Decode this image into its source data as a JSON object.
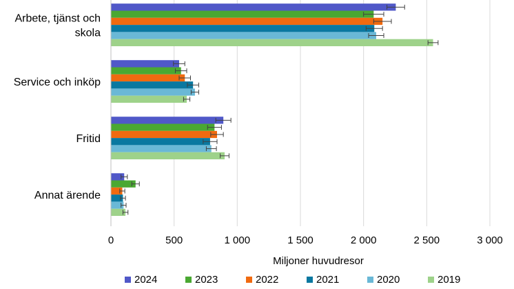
{
  "chart_data": {
    "type": "bar",
    "orientation": "horizontal",
    "title": "",
    "xlabel": "Miljoner huvudresor",
    "ylabel": "",
    "xlim": [
      0,
      3000
    ],
    "x_ticks": [
      0,
      500,
      1000,
      1500,
      2000,
      2500,
      3000
    ],
    "x_tick_labels": [
      "0",
      "500",
      "1 000",
      "1 500",
      "2 000",
      "2 500",
      "3 000"
    ],
    "grid": "vertical",
    "legend_position": "bottom",
    "categories": [
      {
        "lines": [
          "Arbete, tjänst och",
          "skola"
        ]
      },
      {
        "lines": [
          "Service och inköp"
        ]
      },
      {
        "lines": [
          "Fritid"
        ]
      },
      {
        "lines": [
          "Annat ärende"
        ]
      }
    ],
    "series": [
      {
        "name": "2024",
        "color": "#5058c8",
        "values": [
          2255,
          540,
          890,
          105
        ],
        "errors": [
          70,
          45,
          60,
          25
        ]
      },
      {
        "name": "2023",
        "color": "#4aa832",
        "values": [
          2080,
          555,
          820,
          195
        ],
        "errors": [
          80,
          45,
          55,
          30
        ]
      },
      {
        "name": "2022",
        "color": "#f06a10",
        "values": [
          2150,
          585,
          840,
          90
        ],
        "errors": [
          70,
          45,
          50,
          20
        ]
      },
      {
        "name": "2021",
        "color": "#0a78a0",
        "values": [
          2085,
          650,
          785,
          95
        ],
        "errors": [
          65,
          45,
          55,
          20
        ]
      },
      {
        "name": "2020",
        "color": "#6ab8d6",
        "values": [
          2100,
          665,
          795,
          100
        ],
        "errors": [
          60,
          30,
          40,
          20
        ]
      },
      {
        "name": "2019",
        "color": "#9ed28a",
        "values": [
          2550,
          600,
          900,
          115
        ],
        "errors": [
          40,
          25,
          35,
          20
        ]
      }
    ]
  }
}
